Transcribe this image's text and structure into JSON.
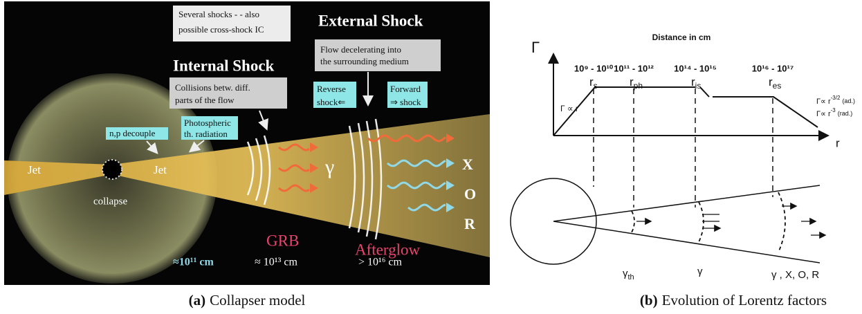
{
  "panel_a": {
    "label": "(a)",
    "caption": "Collapser model",
    "several_shocks": [
      "Several shocks - - also",
      "possible cross-shock IC"
    ],
    "external_heading": "External Shock",
    "external_desc": [
      "Flow decelerating into",
      "the surrounding  medium"
    ],
    "internal_heading": "Internal Shock",
    "internal_desc": [
      "Collisions betw. diff.",
      "parts of the flow"
    ],
    "reverse": [
      "Reverse",
      "shock⇐"
    ],
    "forward": [
      "Forward",
      "⇒ shock"
    ],
    "decouple": "n,p decouple",
    "photospheric": [
      "Photospheric",
      "th. radiation"
    ],
    "jet_labels": [
      "Jet",
      "Jet"
    ],
    "collapse": "collapse",
    "gamma": "γ",
    "bands": [
      "X",
      "O",
      "R"
    ],
    "grb": "GRB",
    "afterglow": "Afterglow",
    "distances": [
      "≈10¹¹ cm",
      "≈ 10¹³ cm",
      "> 10¹⁶ cm"
    ]
  },
  "panel_b": {
    "label": "(b)",
    "caption": "Evolution of Lorentz factors",
    "title": "Distance in cm",
    "y_label": "Γ",
    "x_label": "r",
    "radii": [
      {
        "range": "10⁹ - 10¹⁰",
        "symbol": "r",
        "sub": "s"
      },
      {
        "range": "10¹¹ - 10¹²",
        "symbol": "r",
        "sub": "ph"
      },
      {
        "range": "10¹⁴ - 10¹⁵",
        "symbol": "r",
        "sub": "is"
      },
      {
        "range": "10¹⁶ - 10¹⁷",
        "symbol": "r",
        "sub": "es"
      }
    ],
    "rise_law": "Γ ∝ r",
    "adiabatic": {
      "base": "Γ∝ r",
      "sup": "-3/2",
      "note": "(ad.)"
    },
    "radiative": {
      "base": "Γ∝ r",
      "sup": "-3",
      "note": "(rad.)"
    },
    "cone_labels": [
      {
        "symbol": "γ",
        "sub": "th"
      },
      {
        "symbol": "γ"
      },
      {
        "symbol": "γ , X, O, R"
      }
    ]
  }
}
